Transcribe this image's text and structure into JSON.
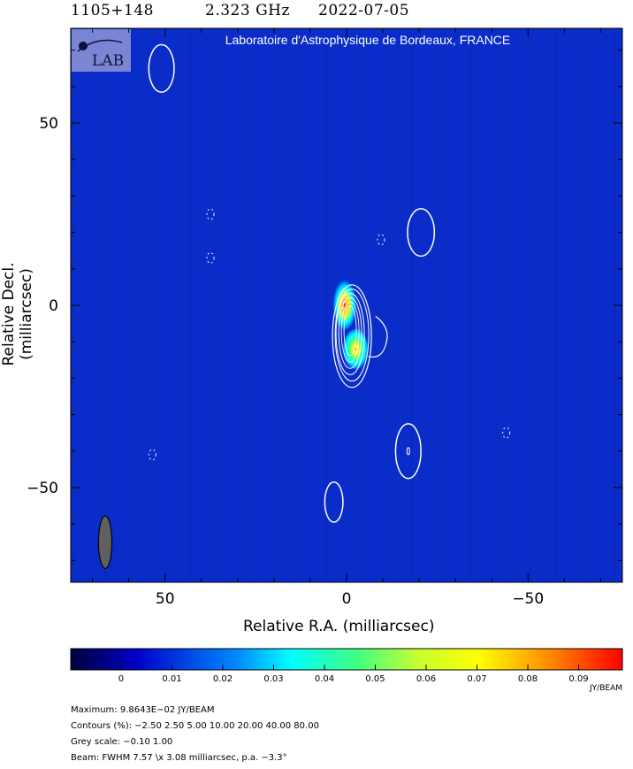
{
  "header": {
    "source": "1105+148",
    "frequency": "2.323 GHz",
    "date": "2022-07-05"
  },
  "banner": {
    "text": "Laboratoire d'Astrophysique de Bordeaux, FRANCE",
    "logo_text": "LAB"
  },
  "chart_data": {
    "type": "heatmap",
    "title": "",
    "xlabel": "Relative R.A. (milliarcsec)",
    "ylabel": "Relative Decl. (milliarcsec)",
    "xlim": [
      76,
      -76
    ],
    "ylim": [
      -76,
      76
    ],
    "x_ticks": [
      50,
      0,
      -50
    ],
    "x_tick_labels": [
      "50",
      "0",
      "−50"
    ],
    "y_ticks": [
      50,
      0,
      -50
    ],
    "y_tick_labels": [
      "50",
      "0",
      "−50"
    ],
    "colormap": [
      "#00003c",
      "#0000c8",
      "#0088ff",
      "#00ffff",
      "#40ff80",
      "#c8ff30",
      "#ffff00",
      "#ff8800",
      "#ff0000"
    ],
    "colorbar": {
      "ticks": [
        0,
        0.01,
        0.02,
        0.03,
        0.04,
        0.05,
        0.06,
        0.07,
        0.08,
        0.09
      ],
      "tick_labels": [
        "0",
        "0.01",
        "0.02",
        "0.03",
        "0.04",
        "0.05",
        "0.06",
        "0.07",
        "0.08",
        "0.09"
      ],
      "range": [
        -0.0099,
        0.0986
      ],
      "unit": "JY/BEAM"
    },
    "components": [
      {
        "x": 0.5,
        "y": 0,
        "peak": 0.0986
      },
      {
        "x": -2.5,
        "y": -12,
        "peak": 0.072
      }
    ],
    "contour_islands": [
      {
        "x": 51,
        "y": 65,
        "rx": 3.5,
        "ry": 6.5
      },
      {
        "x": -20.5,
        "y": 20,
        "rx": 3.7,
        "ry": 6.5
      },
      {
        "x": -17,
        "y": -40,
        "rx": 3.5,
        "ry": 7.5
      },
      {
        "x": 3.5,
        "y": -54,
        "rx": 2.5,
        "ry": 5.5
      }
    ],
    "negative_contours": [
      {
        "x": 37.5,
        "y": 25
      },
      {
        "x": 37.5,
        "y": 13
      },
      {
        "x": -9.5,
        "y": 18
      },
      {
        "x": 53.5,
        "y": -41
      },
      {
        "x": -44,
        "y": -35
      }
    ],
    "beam": {
      "x": 66.5,
      "y": -65,
      "major": 7.57,
      "minor": 3.08,
      "pa": -3.3
    }
  },
  "footer": {
    "maximum": "Maximum: 9.8643E−02 JY/BEAM",
    "contours": "Contours (%): −2.50 2.50 5.00 10.00 20.00 40.00 80.00",
    "grey_scale": "Grey scale: −0.10 1.00",
    "beam": "Beam: FWHM 7.57 \\x 3.08 milliarcsec, p.a. −3.3°"
  }
}
